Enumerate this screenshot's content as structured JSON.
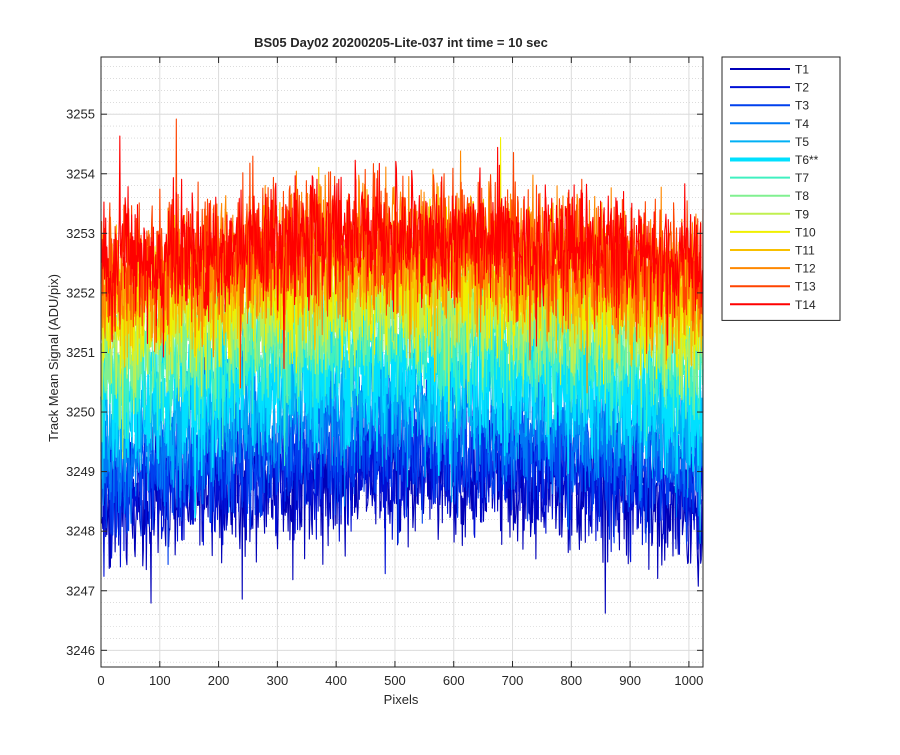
{
  "chart_data": {
    "type": "line",
    "title": "BS05 Day02 20200205-Lite-037 int time = 10 sec",
    "xlabel": "Pixels",
    "ylabel": "Track Mean Signal (ADU/pix)",
    "xlim": [
      0,
      1024
    ],
    "ylim": [
      3245.72,
      3255.96
    ],
    "x_ticks": [
      0,
      100,
      200,
      300,
      400,
      500,
      600,
      700,
      800,
      900,
      1000
    ],
    "y_ticks": [
      3246,
      3247,
      3248,
      3249,
      3250,
      3251,
      3252,
      3253,
      3254,
      3255
    ],
    "grid": true,
    "minor_grid": true,
    "legend_position": "outside-top-right",
    "series": [
      {
        "name": "T1",
        "color": "#0000b8",
        "mean": 3248.3,
        "noise": 0.7,
        "highlight": false
      },
      {
        "name": "T2",
        "color": "#0010d6",
        "mean": 3248.6,
        "noise": 0.7,
        "highlight": false
      },
      {
        "name": "T3",
        "color": "#0040ee",
        "mean": 3248.9,
        "noise": 0.7,
        "highlight": false
      },
      {
        "name": "T4",
        "color": "#0078f5",
        "mean": 3249.3,
        "noise": 0.7,
        "highlight": false
      },
      {
        "name": "T5",
        "color": "#00b0f5",
        "mean": 3249.7,
        "noise": 0.7,
        "highlight": false
      },
      {
        "name": "T6**",
        "color": "#00e0ff",
        "mean": 3250.2,
        "noise": 0.8,
        "highlight": true
      },
      {
        "name": "T7",
        "color": "#40f0c0",
        "mean": 3250.6,
        "noise": 0.7,
        "highlight": false
      },
      {
        "name": "T8",
        "color": "#80f090",
        "mean": 3251.0,
        "noise": 0.7,
        "highlight": false
      },
      {
        "name": "T9",
        "color": "#c0f050",
        "mean": 3251.3,
        "noise": 0.7,
        "highlight": false
      },
      {
        "name": "T10",
        "color": "#f0f000",
        "mean": 3251.6,
        "noise": 0.7,
        "highlight": false
      },
      {
        "name": "T11",
        "color": "#f8c000",
        "mean": 3251.9,
        "noise": 0.7,
        "highlight": false
      },
      {
        "name": "T12",
        "color": "#ff8800",
        "mean": 3252.1,
        "noise": 0.7,
        "highlight": false
      },
      {
        "name": "T13",
        "color": "#ff4400",
        "mean": 3252.3,
        "noise": 0.7,
        "highlight": false
      },
      {
        "name": "T14",
        "color": "#ff0000",
        "mean": 3252.4,
        "noise": 0.7,
        "highlight": false
      }
    ]
  }
}
